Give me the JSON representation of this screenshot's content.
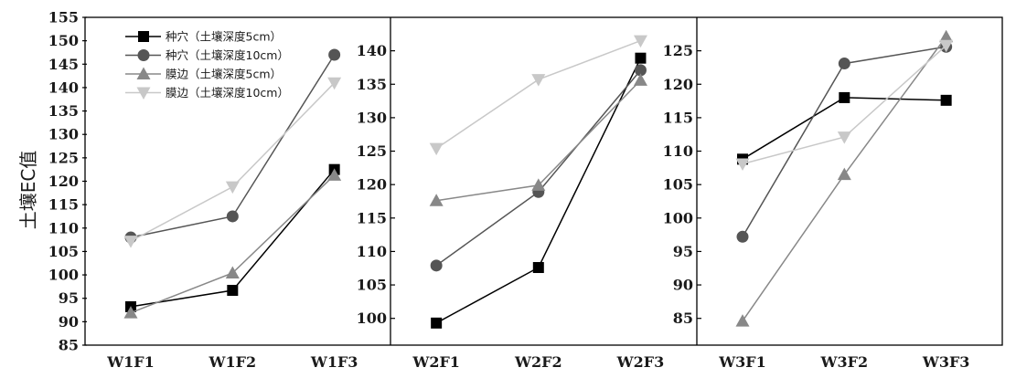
{
  "chart_data": {
    "type": "line",
    "ylabel": "土壤EC值",
    "legend": {
      "placement": "top-left",
      "entries": [
        "种穴（土壤深度5cm）",
        "种穴（土壤深度10cm）",
        "膜边（土壤深度5cm）",
        "膜边（土壤深度10cm）"
      ]
    },
    "styles": [
      {
        "marker": "square",
        "color": "#000000"
      },
      {
        "marker": "circle",
        "color": "#555555"
      },
      {
        "marker": "triangle-up",
        "color": "#888888"
      },
      {
        "marker": "triangle-down",
        "color": "#c8c8c8"
      }
    ],
    "panels": [
      {
        "categories": [
          "W1F1",
          "W1F2",
          "W1F3"
        ],
        "ylim": [
          85,
          155
        ],
        "yticks": [
          85,
          90,
          95,
          100,
          105,
          110,
          115,
          120,
          125,
          130,
          135,
          140,
          145,
          150,
          155
        ],
        "series": [
          {
            "name": "种穴（土壤深度5cm）",
            "values": [
              93.2,
              96.7,
              122.5
            ]
          },
          {
            "name": "种穴（土壤深度10cm）",
            "values": [
              108.0,
              112.5,
              147.0
            ]
          },
          {
            "name": "膜边（土壤深度5cm）",
            "values": [
              91.9,
              100.4,
              121.3
            ]
          },
          {
            "name": "膜边（土壤深度10cm）",
            "values": [
              107.2,
              118.8,
              141.0
            ]
          }
        ]
      },
      {
        "categories": [
          "W2F1",
          "W2F2",
          "W2F3"
        ],
        "ylim": [
          96,
          145
        ],
        "yticks": [
          100,
          105,
          110,
          115,
          120,
          125,
          130,
          135,
          140
        ],
        "series": [
          {
            "name": "种穴（土壤深度5cm）",
            "values": [
              99.3,
              107.6,
              138.9
            ]
          },
          {
            "name": "种穴（土壤深度10cm）",
            "values": [
              107.9,
              118.9,
              137.1
            ]
          },
          {
            "name": "膜边（土壤深度5cm）",
            "values": [
              117.6,
              119.9,
              135.6
            ]
          },
          {
            "name": "膜边（土壤深度10cm）",
            "values": [
              125.4,
              135.7,
              141.5
            ]
          }
        ]
      },
      {
        "categories": [
          "W3F1",
          "W3F2",
          "W3F3"
        ],
        "ylim": [
          81,
          130
        ],
        "yticks": [
          85,
          90,
          95,
          100,
          105,
          110,
          115,
          120,
          125
        ],
        "series": [
          {
            "name": "种穴（土壤深度5cm）",
            "values": [
              108.8,
              118.0,
              117.6
            ]
          },
          {
            "name": "种穴（土壤深度10cm）",
            "values": [
              97.2,
              123.1,
              125.6
            ]
          },
          {
            "name": "膜边（土壤深度5cm）",
            "values": [
              84.6,
              106.5,
              127.1
            ]
          },
          {
            "name": "膜边（土壤深度10cm）",
            "values": [
              108.1,
              112.1,
              125.8
            ]
          }
        ]
      }
    ]
  }
}
